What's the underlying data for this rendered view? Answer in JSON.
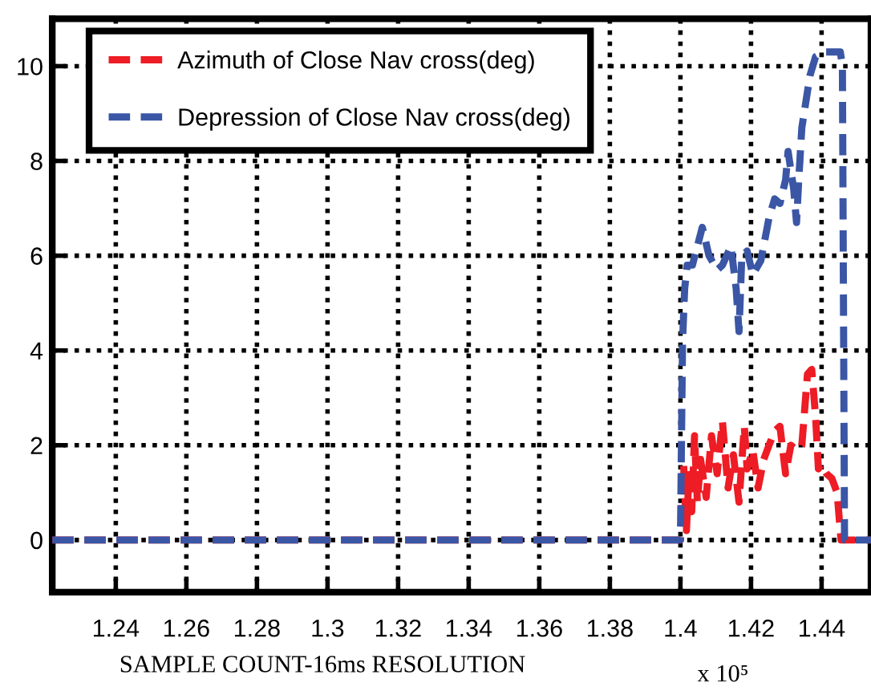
{
  "chart_data": {
    "type": "line",
    "xlabel": "SAMPLE COUNT-16ms RESOLUTION",
    "annotations": [
      "x 10⁵"
    ],
    "xlim": [
      1.222,
      1.454
    ],
    "xticks": [
      1.24,
      1.26,
      1.28,
      1.3,
      1.32,
      1.34,
      1.36,
      1.38,
      1.4,
      1.42,
      1.44
    ],
    "ylim": [
      -1.1,
      11
    ],
    "yticks": [
      0,
      2,
      4,
      6,
      8,
      10
    ],
    "grid": true,
    "legend": "top left",
    "line_style": "dashed",
    "marker": "none",
    "series": [
      {
        "name": "Azimuth of Close Nav cross(deg)",
        "color": "#ee1c25",
        "x": [
          1.222,
          1.4,
          1.4009,
          1.4017,
          1.4025,
          1.4032,
          1.404,
          1.4048,
          1.4057,
          1.4073,
          1.4088,
          1.4104,
          1.4119,
          1.4135,
          1.415,
          1.4166,
          1.4181,
          1.4189,
          1.4205,
          1.422,
          1.4236,
          1.4251,
          1.4267,
          1.4282,
          1.4298,
          1.4313,
          1.4329,
          1.4344,
          1.436,
          1.4372,
          1.4383,
          1.4391,
          1.4398,
          1.4414,
          1.4429,
          1.4444,
          1.4455,
          1.4461,
          1.454
        ],
        "values": [
          0,
          0,
          1.6,
          0.2,
          1.5,
          0.6,
          2.2,
          0.8,
          1.7,
          0.9,
          2.2,
          1.4,
          2.5,
          1.1,
          1.8,
          0.8,
          2.4,
          1.5,
          1.9,
          1.1,
          1.7,
          2.0,
          2.3,
          2.4,
          1.4,
          2.0,
          1.9,
          2.0,
          3.5,
          3.6,
          2.6,
          1.5,
          1.6,
          1.4,
          1.3,
          1.0,
          0,
          0,
          0
        ]
      },
      {
        "name": "Depression of Close Nav cross(deg)",
        "color": "#3a56a5",
        "x": [
          1.222,
          1.4,
          1.4006,
          1.4012,
          1.4019,
          1.4034,
          1.4062,
          1.4081,
          1.4104,
          1.4119,
          1.4143,
          1.4158,
          1.4166,
          1.4174,
          1.4189,
          1.4205,
          1.4228,
          1.4251,
          1.4267,
          1.4282,
          1.4298,
          1.4305,
          1.4321,
          1.4329,
          1.4336,
          1.4344,
          1.4367,
          1.4383,
          1.4406,
          1.4453,
          1.4459,
          1.4465,
          1.454
        ],
        "values": [
          0,
          0,
          4.2,
          5.3,
          5.8,
          5.8,
          6.6,
          6.0,
          5.7,
          5.8,
          6.2,
          5.3,
          4.4,
          6.0,
          6.1,
          5.6,
          5.9,
          6.8,
          7.2,
          7.1,
          7.6,
          8.2,
          7.4,
          6.7,
          7.7,
          8.7,
          9.8,
          10.2,
          10.3,
          10.3,
          10.0,
          0,
          0
        ]
      }
    ]
  }
}
